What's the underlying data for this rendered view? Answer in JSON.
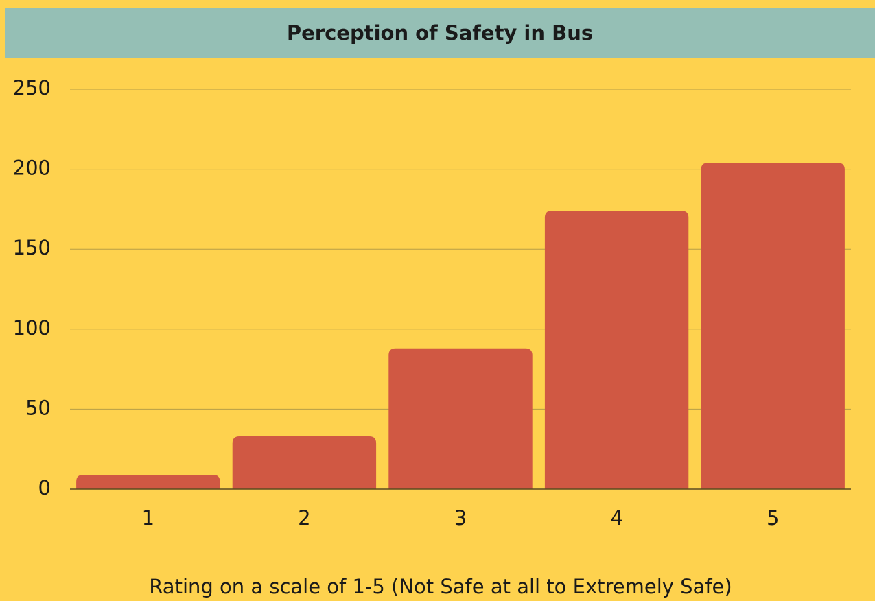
{
  "chart_data": {
    "type": "bar",
    "title": "Perception of Safety in Bus",
    "xlabel": "Rating on a scale of 1-5 (Not Safe at all to Extremely Safe)",
    "categories": [
      "1",
      "2",
      "3",
      "4",
      "5"
    ],
    "values": [
      9,
      33,
      88,
      174,
      204
    ],
    "color": "#d05843",
    "ylim": [
      0,
      250
    ],
    "yticks": [
      0,
      50,
      100,
      150,
      200,
      250
    ],
    "grid": true
  }
}
